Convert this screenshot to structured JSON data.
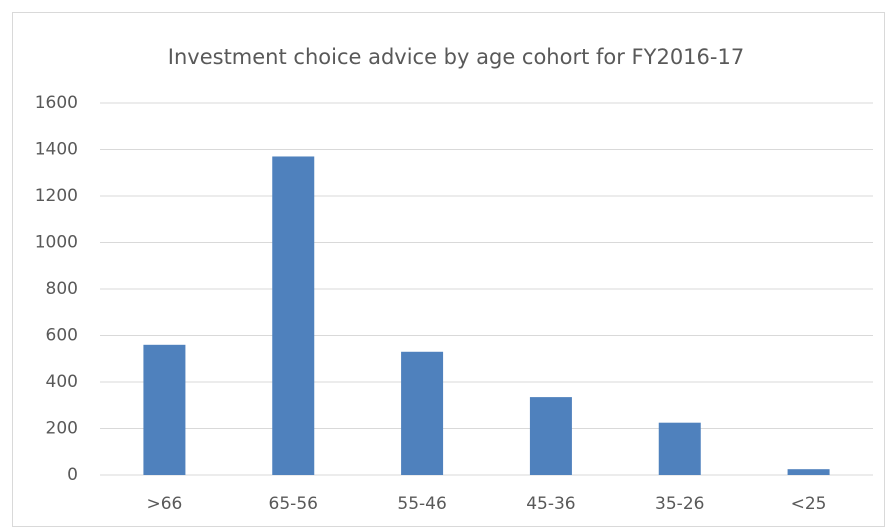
{
  "chart_data": {
    "type": "bar",
    "title": "Investment choice advice by age cohort for FY2016-17",
    "categories": [
      ">66",
      "65-56",
      "55-46",
      "45-36",
      "35-26",
      "<25"
    ],
    "values": [
      560,
      1370,
      530,
      335,
      225,
      25
    ],
    "color": "#4f81bd",
    "ylim": [
      0,
      1600
    ],
    "yticks": [
      0,
      200,
      400,
      600,
      800,
      1000,
      1200,
      1400,
      1600
    ],
    "grid": true
  }
}
